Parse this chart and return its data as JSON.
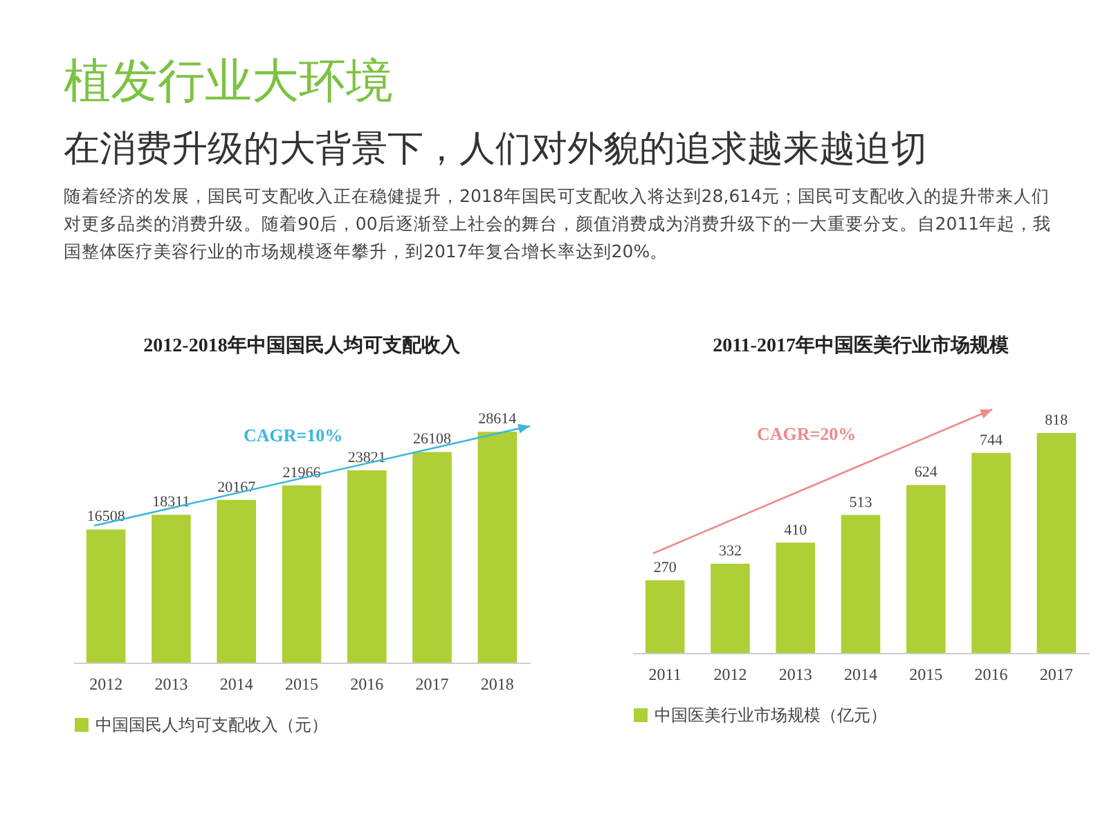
{
  "chart_data": [
    {
      "type": "other",
      "title": "植发行业大环境",
      "subtitle": "在消费升级的大背景下，人们对外貌的追求越来越迫切",
      "annotations": [
        "随着经济的发展，国民可支配收入正在稳健提升，2018年国民可支配收入将达到28,614元；国民可支配收入的提升带来人们对更多品类的消费升级。随着90后，00后逐渐登上社会的舞台，颜值消费成为消费升级下的一大重要分支。自2011年起，我国整体医疗美容行业的市场规模逐年攀升，到2017年复合增长率达到20%。"
      ]
    },
    {
      "type": "bar",
      "title": "2012-2018年中国国民人均可支配收入",
      "categories": [
        "2012",
        "2013",
        "2014",
        "2015",
        "2016",
        "2017",
        "2018"
      ],
      "series": [
        {
          "name": "中国国民人均可支配收入（元）",
          "color": "#aecf35",
          "values": [
            16508,
            18311,
            20167,
            21966,
            23821,
            26108,
            28614
          ]
        }
      ],
      "data_labels": true,
      "legend": "bottom",
      "annotations": [
        "CAGR=10%"
      ]
    },
    {
      "type": "bar",
      "title": "2011-2017年中国医美行业市场规模",
      "categories": [
        "2011",
        "2012",
        "2013",
        "2014",
        "2015",
        "2016",
        "2017"
      ],
      "series": [
        {
          "name": "中国医美行业市场规模（亿元）",
          "color": "#aecf35",
          "values": [
            270,
            332,
            410,
            513,
            624,
            744,
            818
          ]
        }
      ],
      "data_labels": true,
      "legend": "bottom",
      "annotations": [
        "CAGR=20%"
      ]
    }
  ]
}
